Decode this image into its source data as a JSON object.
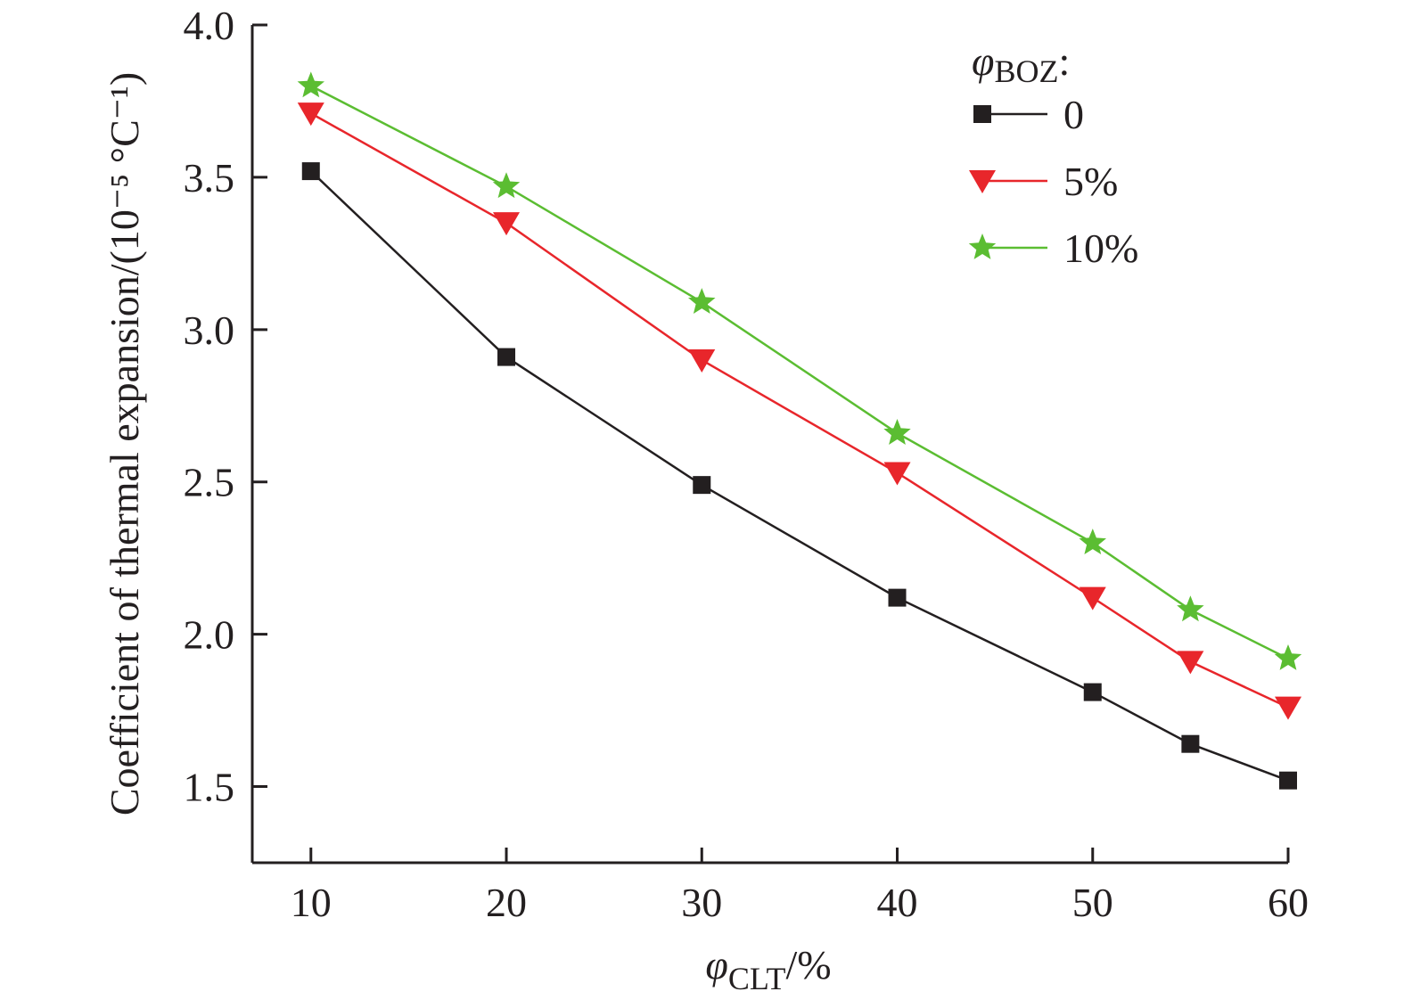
{
  "chart_data": {
    "type": "line",
    "title": "",
    "xlabel": {
      "symbol": "φ",
      "subscript": "CLT",
      "suffix": "/%"
    },
    "ylabel": "Coefficient of thermal expansion/(10⁻⁵ °C⁻¹)",
    "xlim": [
      7,
      60
    ],
    "ylim": [
      1.25,
      4.0
    ],
    "xticks": [
      10,
      20,
      30,
      40,
      50,
      60
    ],
    "xtick_labels": [
      "10",
      "20",
      "30",
      "40",
      "50",
      "60"
    ],
    "yticks": [
      1.5,
      2.0,
      2.5,
      3.0,
      3.5,
      4.0
    ],
    "ytick_labels": [
      "1.5",
      "2.0",
      "2.5",
      "3.0",
      "3.5",
      "4.0"
    ],
    "grid": false,
    "legend": {
      "title_symbol": "φ",
      "title_subscript": "BOZ",
      "title_suffix": ":",
      "placement": "top-right"
    },
    "x": [
      10,
      20,
      30,
      40,
      50,
      55,
      60
    ],
    "series": [
      {
        "name": "0",
        "color": "#231f20",
        "marker": "square",
        "values": [
          3.52,
          2.91,
          2.49,
          2.12,
          1.81,
          1.64,
          1.52
        ]
      },
      {
        "name": "5%",
        "color": "#e8262b",
        "marker": "triangle-down",
        "values": [
          3.71,
          3.35,
          2.9,
          2.53,
          2.12,
          1.91,
          1.76
        ]
      },
      {
        "name": "10%",
        "color": "#5bbd32",
        "marker": "star",
        "values": [
          3.8,
          3.47,
          3.09,
          2.66,
          2.3,
          2.08,
          1.92
        ]
      }
    ]
  }
}
